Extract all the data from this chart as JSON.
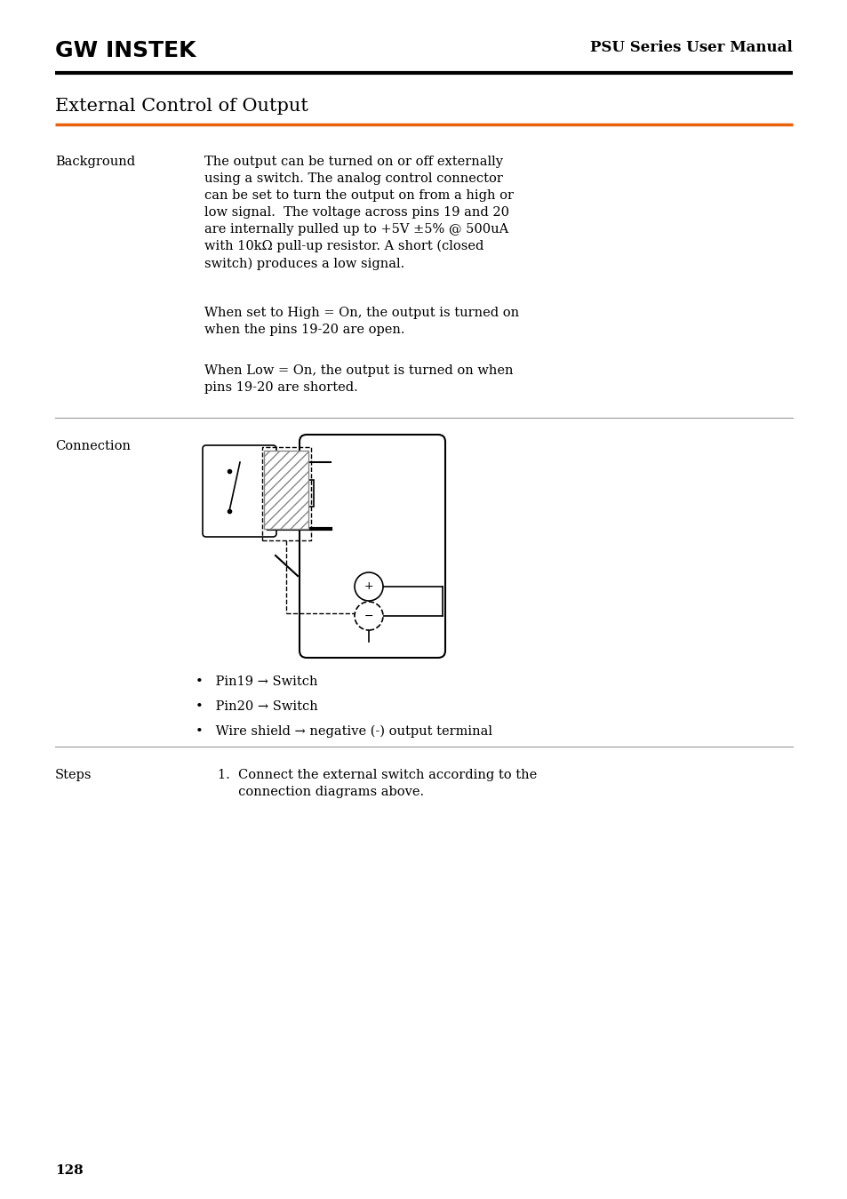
{
  "page_number": "128",
  "header_logo_text": "GW INSTEK",
  "header_right_text": "PSU Series User Manual",
  "section_title": "External Control of Output",
  "orange_line_color": "#E8600A",
  "black_color": "#000000",
  "white_color": "#ffffff",
  "gray_line_color": "#999999",
  "label_background": "Background",
  "label_connection": "Connection",
  "label_steps": "Steps",
  "bg_para1": "The output can be turned on or off externally\nusing a switch. The analog control connector\ncan be set to turn the output on from a high or\nlow signal.  The voltage across pins 19 and 20\nare internally pulled up to +5V ±5% @ 500uA\nwith 10kΩ pull-up resistor. A short (closed\nswitch) produces a low signal.",
  "bg_para2": "When set to High = On, the output is turned on\nwhen the pins 19-20 are open.",
  "bg_para3": "When Low = On, the output is turned on when\npins 19-20 are shorted.",
  "bullet1": "Pin19 → Switch",
  "bullet2": "Pin20 → Switch",
  "bullet3": "Wire shield → negative (-) output terminal",
  "steps_text": "1.  Connect the external switch according to the\n     connection diagrams above.",
  "font_size_header": 12,
  "font_size_title": 15,
  "font_size_body": 10.5,
  "font_size_page": 11
}
